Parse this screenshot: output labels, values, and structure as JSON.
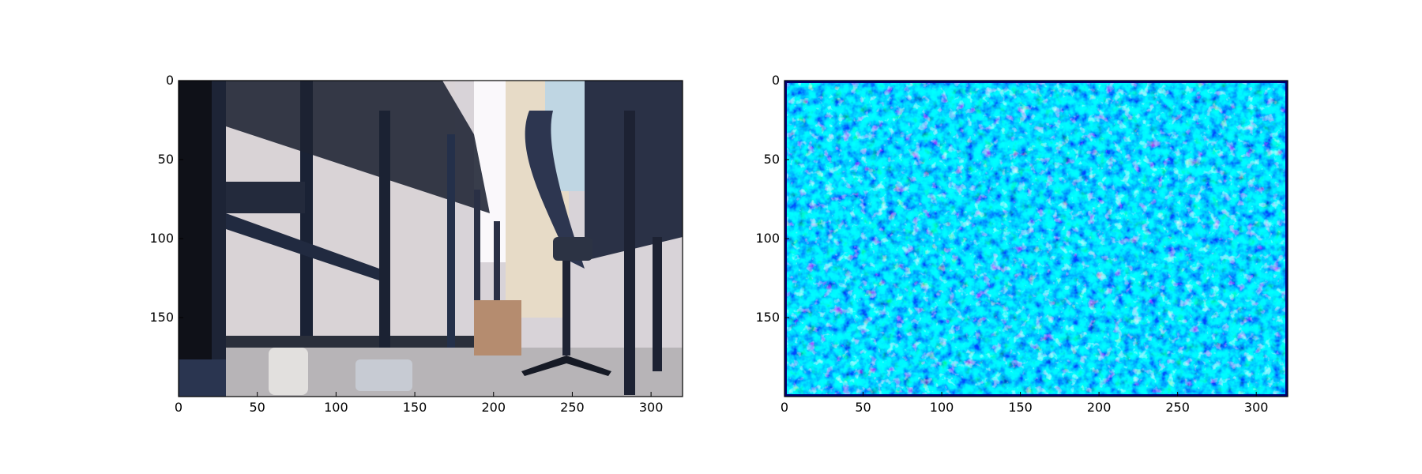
{
  "chart_data": [
    {
      "type": "image",
      "title": "",
      "xlabel": "",
      "ylabel": "",
      "xlim": [
        0,
        320
      ],
      "ylim": [
        200,
        0
      ],
      "x_ticks": [
        0,
        50,
        100,
        150,
        200,
        250,
        300
      ],
      "y_ticks": [
        0,
        50,
        100,
        150
      ],
      "content": "camera photo"
    },
    {
      "type": "heatmap",
      "title": "",
      "xlabel": "",
      "ylabel": "",
      "xlim": [
        0,
        320
      ],
      "ylim": [
        200,
        0
      ],
      "x_ticks": [
        0,
        50,
        100,
        150,
        200,
        250,
        300
      ],
      "y_ticks": [
        0,
        50,
        100,
        150
      ],
      "colormap": [
        "#00008f",
        "#0000ff",
        "#0080ff",
        "#00ffff",
        "#80ff80",
        "#ffff00"
      ]
    }
  ]
}
